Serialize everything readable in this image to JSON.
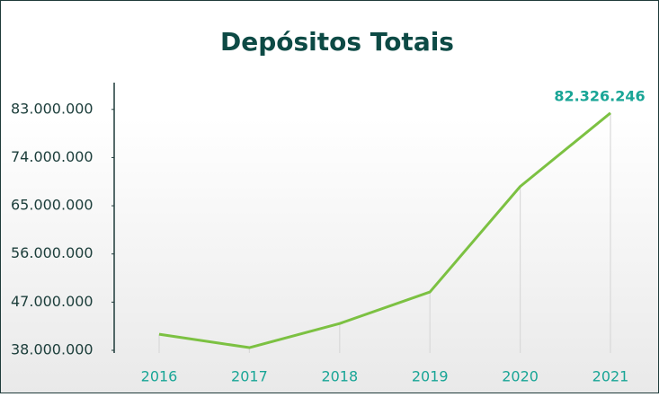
{
  "chart_data": {
    "type": "line",
    "title": "Depósitos Totais",
    "categories": [
      "2016",
      "2017",
      "2018",
      "2019",
      "2020",
      "2021"
    ],
    "series": [
      {
        "name": "Depósitos Totais",
        "color": "#7cc142",
        "values": [
          41000000,
          38500000,
          43000000,
          48900000,
          68600000,
          82326246
        ],
        "value_labels": [
          null,
          null,
          null,
          null,
          null,
          "82.326.246"
        ]
      }
    ],
    "ylim": [
      37500000,
      88000000
    ],
    "yticks": [
      {
        "value": 38000000,
        "label": "38.000.000"
      },
      {
        "value": 47000000,
        "label": "47.000.000"
      },
      {
        "value": 56000000,
        "label": "56.000.000"
      },
      {
        "value": 65000000,
        "label": "65.000.000"
      },
      {
        "value": 74000000,
        "label": "74.000.000"
      },
      {
        "value": 83000000,
        "label": "83.000.000"
      }
    ]
  }
}
